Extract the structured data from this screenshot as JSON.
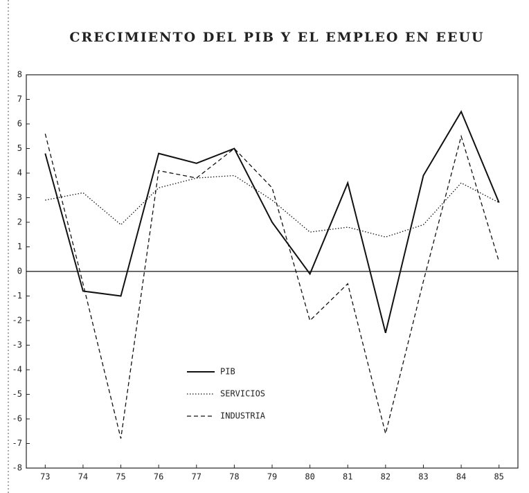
{
  "chart_data": {
    "type": "line",
    "title": "CRECIMIENTO DEL PIB Y EL EMPLEO EN EEUU",
    "categories": [
      "73",
      "74",
      "75",
      "76",
      "77",
      "78",
      "79",
      "80",
      "81",
      "82",
      "83",
      "84",
      "85"
    ],
    "series": [
      {
        "name": "PIB",
        "color": "#111111",
        "dash": "solid",
        "values": [
          4.8,
          -0.8,
          -1.0,
          4.8,
          4.4,
          5.0,
          2.0,
          -0.1,
          3.6,
          -2.5,
          3.9,
          6.5,
          2.8
        ]
      },
      {
        "name": "SERVICIOS",
        "color": "#111111",
        "dash": "dotted",
        "values": [
          2.9,
          3.2,
          1.9,
          3.4,
          3.8,
          3.9,
          2.9,
          1.6,
          1.8,
          1.4,
          1.9,
          3.6,
          2.8
        ]
      },
      {
        "name": "INDUSTRIA",
        "color": "#111111",
        "dash": "dashed",
        "values": [
          5.6,
          -0.5,
          -6.8,
          4.1,
          3.8,
          5.0,
          3.4,
          -2.0,
          -0.5,
          -6.6,
          -0.4,
          5.5,
          0.4
        ]
      }
    ],
    "ylim": [
      -8,
      8
    ],
    "yticks": [
      -8,
      -7,
      -6,
      -5,
      -4,
      -3,
      -2,
      -1,
      0,
      1,
      2,
      3,
      4,
      5,
      6,
      7,
      8
    ],
    "zero_line": true
  }
}
